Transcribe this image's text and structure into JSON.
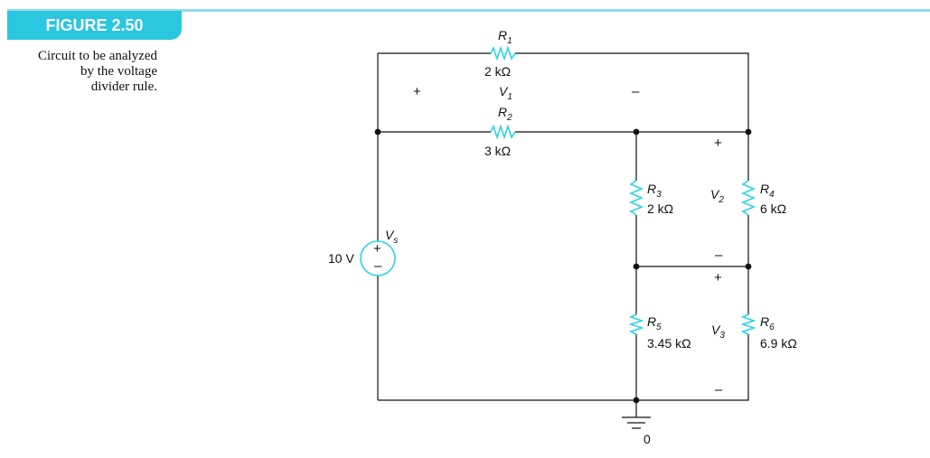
{
  "figure": {
    "number": "FIGURE 2.50",
    "caption_lines": [
      "Circuit to be analyzed",
      "by the voltage",
      "divider rule."
    ],
    "accent_color": "#2bc6df"
  },
  "circuit": {
    "source": {
      "name": "V",
      "sub": "s",
      "value": "10 V",
      "plus": "+",
      "minus": "–"
    },
    "resistors": {
      "r1": {
        "name": "R",
        "sub": "1",
        "value": "2 kΩ"
      },
      "r2": {
        "name": "R",
        "sub": "2",
        "value": "3 kΩ"
      },
      "r3": {
        "name": "R",
        "sub": "3",
        "value": "2 kΩ"
      },
      "r4": {
        "name": "R",
        "sub": "4",
        "value": "6 kΩ"
      },
      "r5": {
        "name": "R",
        "sub": "5",
        "value": "3.45 kΩ"
      },
      "r6": {
        "name": "R",
        "sub": "6",
        "value": "6.9 kΩ"
      }
    },
    "voltages": {
      "v1": {
        "name": "V",
        "sub": "1",
        "plus": "+",
        "minus": "–"
      },
      "v2": {
        "name": "V",
        "sub": "2",
        "plus": "+",
        "minus": "–"
      },
      "v3": {
        "name": "V",
        "sub": "3",
        "plus": "+",
        "minus": "–"
      }
    },
    "ground": {
      "label": "0"
    },
    "component_color": "#2bd4e6"
  }
}
